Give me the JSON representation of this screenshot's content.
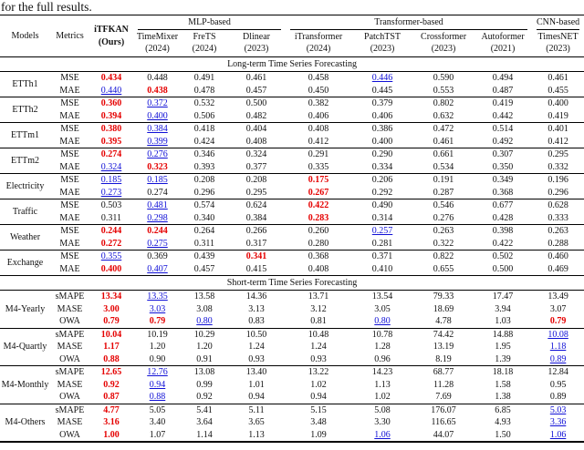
{
  "caption": "for the full results.",
  "header": {
    "models": "Models",
    "metrics": "Metrics",
    "ours": {
      "line1": "iTFKAN",
      "line2": "(Ours)"
    },
    "groups": [
      {
        "label": "MLP-based"
      },
      {
        "label": "Transformer-based"
      },
      {
        "label": "CNN-based"
      }
    ],
    "columns": [
      {
        "name": "TimeMixer",
        "year": "(2024)"
      },
      {
        "name": "FreTS",
        "year": "(2024)"
      },
      {
        "name": "Dlinear",
        "year": "(2023)"
      },
      {
        "name": "iTransformer",
        "year": "(2024)"
      },
      {
        "name": "PatchTST",
        "year": "(2023)"
      },
      {
        "name": "Crossformer",
        "year": "(2023)"
      },
      {
        "name": "Autoformer",
        "year": "(2021)"
      },
      {
        "name": "TimesNET",
        "year": "(2023)"
      }
    ]
  },
  "highlight_colors": {
    "best_red": "#e50000",
    "second_blue": "#0f0fd6"
  },
  "sections": [
    {
      "title": "Long-term Time Series Forecasting",
      "blocks": [
        {
          "dataset": "ETTh1",
          "rows": [
            {
              "metric": "MSE",
              "values": [
                "0.434",
                "0.448",
                "0.491",
                "0.461",
                "0.458",
                "0.446",
                "0.590",
                "0.494",
                "0.461"
              ],
              "styles": [
                "r",
                "",
                "",
                "",
                "",
                "b",
                "",
                "",
                ""
              ]
            },
            {
              "metric": "MAE",
              "values": [
                "0.440",
                "0.438",
                "0.478",
                "0.457",
                "0.450",
                "0.445",
                "0.553",
                "0.487",
                "0.455"
              ],
              "styles": [
                "b",
                "r",
                "",
                "",
                "",
                "",
                "",
                "",
                ""
              ]
            }
          ]
        },
        {
          "dataset": "ETTh2",
          "rows": [
            {
              "metric": "MSE",
              "values": [
                "0.360",
                "0.372",
                "0.532",
                "0.500",
                "0.382",
                "0.379",
                "0.802",
                "0.419",
                "0.400"
              ],
              "styles": [
                "r",
                "b",
                "",
                "",
                "",
                "",
                "",
                "",
                ""
              ]
            },
            {
              "metric": "MAE",
              "values": [
                "0.394",
                "0.400",
                "0.506",
                "0.482",
                "0.406",
                "0.406",
                "0.632",
                "0.442",
                "0.419"
              ],
              "styles": [
                "r",
                "b",
                "",
                "",
                "",
                "",
                "",
                "",
                ""
              ]
            }
          ]
        },
        {
          "dataset": "ETTm1",
          "rows": [
            {
              "metric": "MSE",
              "values": [
                "0.380",
                "0.384",
                "0.418",
                "0.404",
                "0.408",
                "0.386",
                "0.472",
                "0.514",
                "0.401"
              ],
              "styles": [
                "r",
                "b",
                "",
                "",
                "",
                "",
                "",
                "",
                ""
              ]
            },
            {
              "metric": "MAE",
              "values": [
                "0.395",
                "0.399",
                "0.424",
                "0.408",
                "0.412",
                "0.400",
                "0.461",
                "0.492",
                "0.412"
              ],
              "styles": [
                "r",
                "b",
                "",
                "",
                "",
                "",
                "",
                "",
                ""
              ]
            }
          ]
        },
        {
          "dataset": "ETTm2",
          "rows": [
            {
              "metric": "MSE",
              "values": [
                "0.274",
                "0.276",
                "0.346",
                "0.324",
                "0.291",
                "0.290",
                "0.661",
                "0.307",
                "0.295"
              ],
              "styles": [
                "r",
                "b",
                "",
                "",
                "",
                "",
                "",
                "",
                ""
              ]
            },
            {
              "metric": "MAE",
              "values": [
                "0.324",
                "0.323",
                "0.393",
                "0.377",
                "0.335",
                "0.334",
                "0.534",
                "0.350",
                "0.332"
              ],
              "styles": [
                "b",
                "r",
                "",
                "",
                "",
                "",
                "",
                "",
                ""
              ]
            }
          ]
        },
        {
          "dataset": "Electricity",
          "rows": [
            {
              "metric": "MSE",
              "values": [
                "0.185",
                "0.185",
                "0.208",
                "0.208",
                "0.175",
                "0.206",
                "0.191",
                "0.349",
                "0.196"
              ],
              "styles": [
                "b",
                "b",
                "",
                "",
                "r",
                "",
                "",
                "",
                ""
              ]
            },
            {
              "metric": "MAE",
              "values": [
                "0.273",
                "0.274",
                "0.296",
                "0.295",
                "0.267",
                "0.292",
                "0.287",
                "0.368",
                "0.296"
              ],
              "styles": [
                "b",
                "",
                "",
                "",
                "r",
                "",
                "",
                "",
                ""
              ]
            }
          ]
        },
        {
          "dataset": "Traffic",
          "rows": [
            {
              "metric": "MSE",
              "values": [
                "0.503",
                "0.481",
                "0.574",
                "0.624",
                "0.422",
                "0.490",
                "0.546",
                "0.677",
                "0.628"
              ],
              "styles": [
                "",
                "b",
                "",
                "",
                "r",
                "",
                "",
                "",
                ""
              ]
            },
            {
              "metric": "MAE",
              "values": [
                "0.311",
                "0.298",
                "0.340",
                "0.384",
                "0.283",
                "0.314",
                "0.276",
                "0.428",
                "0.333"
              ],
              "styles": [
                "",
                "b",
                "",
                "",
                "r",
                "",
                "",
                "",
                ""
              ]
            }
          ]
        },
        {
          "dataset": "Weather",
          "rows": [
            {
              "metric": "MSE",
              "values": [
                "0.244",
                "0.244",
                "0.264",
                "0.266",
                "0.260",
                "0.257",
                "0.263",
                "0.398",
                "0.263"
              ],
              "styles": [
                "r",
                "r",
                "",
                "",
                "",
                "b",
                "",
                "",
                ""
              ]
            },
            {
              "metric": "MAE",
              "values": [
                "0.272",
                "0.275",
                "0.311",
                "0.317",
                "0.280",
                "0.281",
                "0.322",
                "0.422",
                "0.288"
              ],
              "styles": [
                "r",
                "b",
                "",
                "",
                "",
                "",
                "",
                "",
                ""
              ]
            }
          ]
        },
        {
          "dataset": "Exchange",
          "rows": [
            {
              "metric": "MSE",
              "values": [
                "0.355",
                "0.369",
                "0.439",
                "0.341",
                "0.368",
                "0.371",
                "0.822",
                "0.502",
                "0.460"
              ],
              "styles": [
                "b",
                "",
                "",
                "r",
                "",
                "",
                "",
                "",
                ""
              ]
            },
            {
              "metric": "MAE",
              "values": [
                "0.400",
                "0.407",
                "0.457",
                "0.415",
                "0.408",
                "0.410",
                "0.655",
                "0.500",
                "0.469"
              ],
              "styles": [
                "r",
                "b",
                "",
                "",
                "",
                "",
                "",
                "",
                ""
              ]
            }
          ]
        }
      ]
    },
    {
      "title": "Short-term Time Series Forecasting",
      "blocks": [
        {
          "dataset": "M4-Yearly",
          "rows": [
            {
              "metric": "sMAPE",
              "values": [
                "13.34",
                "13.35",
                "13.58",
                "14.36",
                "13.71",
                "13.54",
                "79.33",
                "17.47",
                "13.49"
              ],
              "styles": [
                "r",
                "b",
                "",
                "",
                "",
                "",
                "",
                "",
                ""
              ]
            },
            {
              "metric": "MASE",
              "values": [
                "3.00",
                "3.03",
                "3.08",
                "3.13",
                "3.12",
                "3.05",
                "18.69",
                "3.94",
                "3.07"
              ],
              "styles": [
                "r",
                "b",
                "",
                "",
                "",
                "",
                "",
                "",
                ""
              ]
            },
            {
              "metric": "OWA",
              "values": [
                "0.79",
                "0.79",
                "0.80",
                "0.83",
                "0.81",
                "0.80",
                "4.78",
                "1.03",
                "0.79"
              ],
              "styles": [
                "r",
                "r",
                "b",
                "",
                "",
                "b",
                "",
                "",
                "r"
              ]
            }
          ]
        },
        {
          "dataset": "M4-Quartly",
          "rows": [
            {
              "metric": "sMAPE",
              "values": [
                "10.04",
                "10.19",
                "10.29",
                "10.50",
                "10.48",
                "10.78",
                "74.42",
                "14.88",
                "10.08"
              ],
              "styles": [
                "r",
                "",
                "",
                "",
                "",
                "",
                "",
                "",
                "b"
              ]
            },
            {
              "metric": "MASE",
              "values": [
                "1.17",
                "1.20",
                "1.20",
                "1.24",
                "1.24",
                "1.28",
                "13.19",
                "1.95",
                "1.18"
              ],
              "styles": [
                "r",
                "",
                "",
                "",
                "",
                "",
                "",
                "",
                "b"
              ]
            },
            {
              "metric": "OWA",
              "values": [
                "0.88",
                "0.90",
                "0.91",
                "0.93",
                "0.93",
                "0.96",
                "8.19",
                "1.39",
                "0.89"
              ],
              "styles": [
                "r",
                "",
                "",
                "",
                "",
                "",
                "",
                "",
                "b"
              ]
            }
          ]
        },
        {
          "dataset": "M4-Monthly",
          "rows": [
            {
              "metric": "sMAPE",
              "values": [
                "12.65",
                "12.76",
                "13.08",
                "13.40",
                "13.22",
                "14.23",
                "68.77",
                "18.18",
                "12.84"
              ],
              "styles": [
                "r",
                "b",
                "",
                "",
                "",
                "",
                "",
                "",
                ""
              ]
            },
            {
              "metric": "MASE",
              "values": [
                "0.92",
                "0.94",
                "0.99",
                "1.01",
                "1.02",
                "1.13",
                "11.28",
                "1.58",
                "0.95"
              ],
              "styles": [
                "r",
                "b",
                "",
                "",
                "",
                "",
                "",
                "",
                ""
              ]
            },
            {
              "metric": "OWA",
              "values": [
                "0.87",
                "0.88",
                "0.92",
                "0.94",
                "0.94",
                "1.02",
                "7.69",
                "1.38",
                "0.89"
              ],
              "styles": [
                "r",
                "b",
                "",
                "",
                "",
                "",
                "",
                "",
                ""
              ]
            }
          ]
        },
        {
          "dataset": "M4-Others",
          "rows": [
            {
              "metric": "sMAPE",
              "values": [
                "4.77",
                "5.05",
                "5.41",
                "5.11",
                "5.15",
                "5.08",
                "176.07",
                "6.85",
                "5.03"
              ],
              "styles": [
                "r",
                "",
                "",
                "",
                "",
                "",
                "",
                "",
                "b"
              ]
            },
            {
              "metric": "MASE",
              "values": [
                "3.16",
                "3.40",
                "3.64",
                "3.65",
                "3.48",
                "3.30",
                "116.65",
                "4.93",
                "3.36"
              ],
              "styles": [
                "r",
                "",
                "",
                "",
                "",
                "",
                "",
                "",
                "b"
              ]
            },
            {
              "metric": "OWA",
              "values": [
                "1.00",
                "1.07",
                "1.14",
                "1.13",
                "1.09",
                "1.06",
                "44.07",
                "1.50",
                "1.06"
              ],
              "styles": [
                "r",
                "",
                "",
                "",
                "",
                "b",
                "",
                "",
                "b"
              ]
            }
          ]
        }
      ]
    }
  ]
}
